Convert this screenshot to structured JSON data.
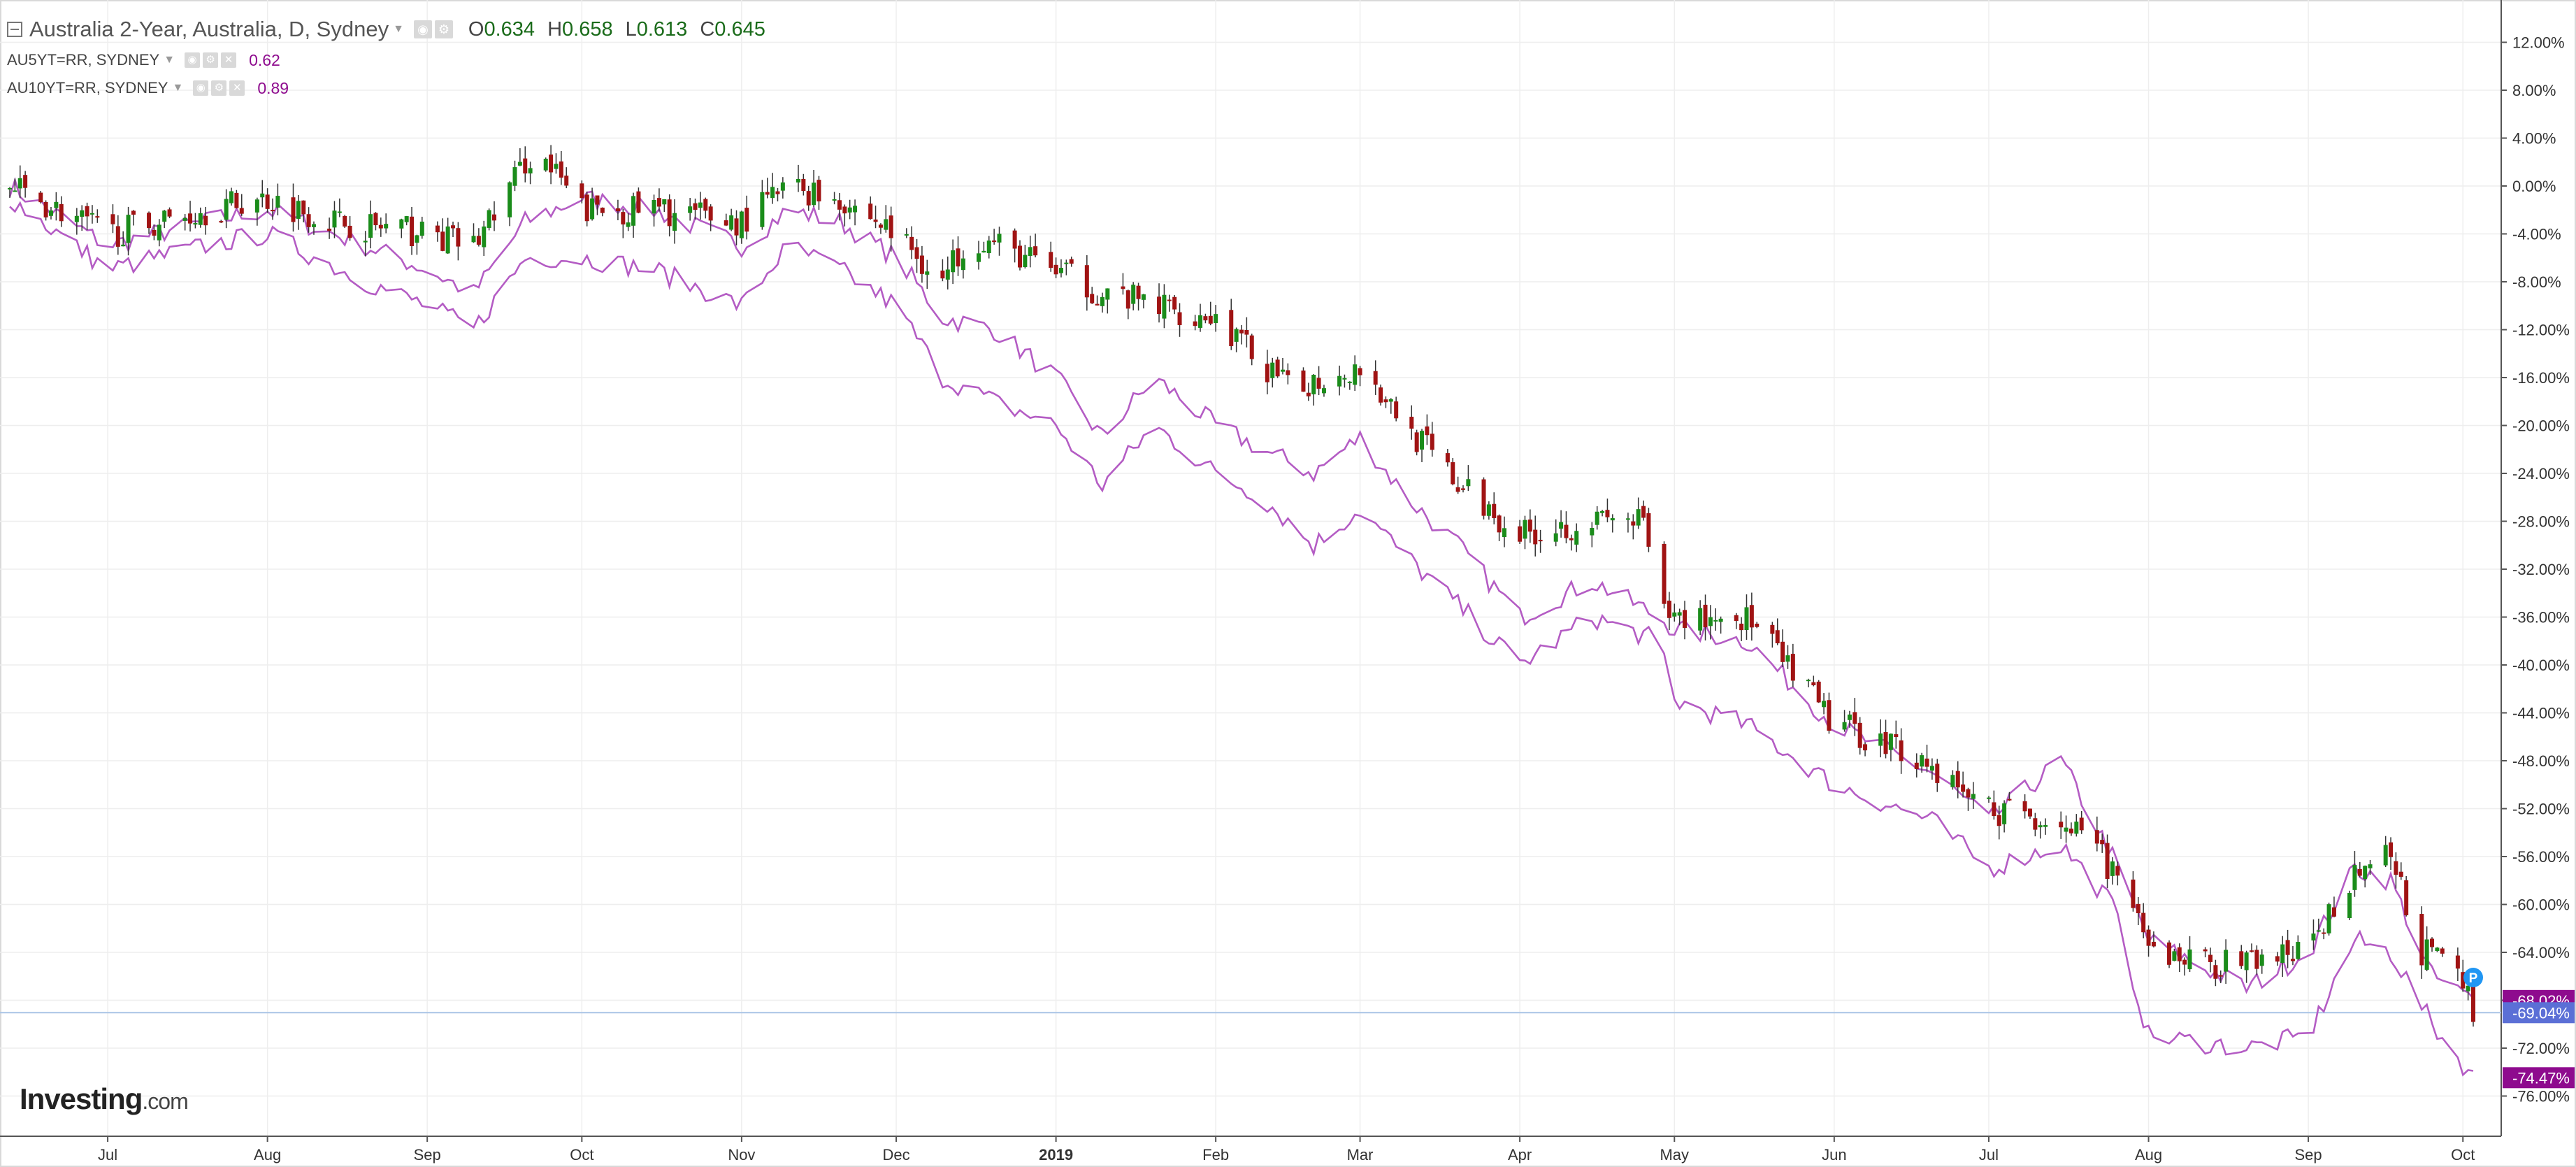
{
  "header": {
    "symbol_title": "Australia 2-Year, Australia, D, Sydney",
    "ohlc": [
      {
        "label": "O",
        "value": "0.634"
      },
      {
        "label": "H",
        "value": "0.658"
      },
      {
        "label": "L",
        "value": "0.613"
      },
      {
        "label": "C",
        "value": "0.645"
      }
    ],
    "overlays": [
      {
        "label": "AU5YT=RR, SYDNEY",
        "value": "0.62"
      },
      {
        "label": "AU10YT=RR, SYDNEY",
        "value": "0.89"
      }
    ]
  },
  "branding": {
    "logo_main": "Investing",
    "logo_suffix": ".com"
  },
  "price_marker": {
    "symbol": "P",
    "color": "#2196f3"
  },
  "colors": {
    "up": "#1a8c1a",
    "down": "#a01313",
    "overlay_line": "#b45cc4",
    "label_purple": "#8e0b8e",
    "label_blue": "#5b6fd6",
    "baseline": "#a9c4e6",
    "grid": "#eeeeee"
  },
  "chart_data": {
    "type": "line",
    "description_main_series": "candlestick",
    "x_axis_labels": [
      "Jul",
      "Aug",
      "Sep",
      "Oct",
      "Nov",
      "Dec",
      "2019",
      "Feb",
      "Mar",
      "Apr",
      "May",
      "Jun",
      "Jul",
      "Aug",
      "Sep",
      "Oct"
    ],
    "x_range": [
      "2018-06-12",
      "2019-10-03"
    ],
    "y_ticks": [
      12,
      8,
      4,
      0,
      -4,
      -8,
      -12,
      -16,
      -20,
      -24,
      -28,
      -32,
      -36,
      -40,
      -44,
      -48,
      -52,
      -56,
      -60,
      -64,
      -68,
      -72,
      -76
    ],
    "y_tick_labels": [
      "12.00%",
      "8.00%",
      "4.00%",
      "0.00%",
      "-4.00%",
      "-8.00%",
      "-12.00%",
      "-16.00%",
      "-20.00%",
      "-24.00%",
      "-28.00%",
      "-32.00%",
      "-36.00%",
      "-40.00%",
      "-44.00%",
      "-48.00%",
      "-52.00%",
      "-56.00%",
      "-60.00%",
      "-64.00%",
      "-68.00%",
      "-72.00%",
      "-76.00%"
    ],
    "ylim": [
      -79,
      15
    ],
    "y_unit": "% change",
    "last_value_labels": [
      {
        "text": "-68.02%",
        "value": -68.02,
        "series": "AU5YT=RR"
      },
      {
        "text": "-69.04%",
        "value": -69.04,
        "series": "Australia 2-Year"
      },
      {
        "text": "-74.47%",
        "value": -74.47,
        "series": "AU10YT=RR"
      }
    ],
    "baseline_value": -69.04,
    "grid": true,
    "series": [
      {
        "name": "Australia 2-Year",
        "style": "candlestick",
        "points": [
          [
            "2018-06-12",
            0
          ],
          [
            "2018-07-01",
            -4
          ],
          [
            "2018-07-20",
            -2
          ],
          [
            "2018-08-01",
            -1
          ],
          [
            "2018-08-15",
            -3
          ],
          [
            "2018-09-01",
            -4
          ],
          [
            "2018-09-10",
            -5
          ],
          [
            "2018-09-20",
            2
          ],
          [
            "2018-09-22",
            3
          ],
          [
            "2018-10-01",
            -2
          ],
          [
            "2018-10-15",
            -2
          ],
          [
            "2018-11-01",
            -3
          ],
          [
            "2018-11-10",
            0
          ],
          [
            "2018-11-20",
            -1
          ],
          [
            "2018-12-01",
            -4
          ],
          [
            "2018-12-10",
            -8
          ],
          [
            "2018-12-15",
            -4
          ],
          [
            "2019-01-01",
            -7
          ],
          [
            "2019-01-10",
            -9
          ],
          [
            "2019-02-01",
            -11
          ],
          [
            "2019-02-15",
            -17
          ],
          [
            "2019-03-01",
            -15
          ],
          [
            "2019-03-10",
            -20
          ],
          [
            "2019-03-20",
            -25
          ],
          [
            "2019-04-01",
            -29
          ],
          [
            "2019-04-15",
            -28
          ],
          [
            "2019-04-25",
            -28
          ],
          [
            "2019-04-28",
            -36
          ],
          [
            "2019-05-15",
            -36
          ],
          [
            "2019-06-01",
            -45
          ],
          [
            "2019-06-15",
            -47
          ],
          [
            "2019-07-01",
            -52
          ],
          [
            "2019-07-15",
            -53
          ],
          [
            "2019-07-25",
            -57
          ],
          [
            "2019-08-01",
            -64
          ],
          [
            "2019-08-15",
            -65
          ],
          [
            "2019-09-01",
            -64
          ],
          [
            "2019-09-10",
            -57
          ],
          [
            "2019-09-17",
            -56
          ],
          [
            "2019-09-23",
            -64
          ],
          [
            "2019-09-30",
            -65
          ],
          [
            "2019-10-03",
            -69.04
          ]
        ]
      },
      {
        "name": "AU5YT=RR",
        "style": "line",
        "points": [
          [
            "2018-06-12",
            0
          ],
          [
            "2018-07-01",
            -5
          ],
          [
            "2018-07-20",
            -3
          ],
          [
            "2018-08-01",
            -2
          ],
          [
            "2018-08-20",
            -5
          ],
          [
            "2018-09-01",
            -7
          ],
          [
            "2018-09-10",
            -9
          ],
          [
            "2018-09-20",
            -3
          ],
          [
            "2018-10-01",
            -1
          ],
          [
            "2018-10-15",
            -2
          ],
          [
            "2018-11-01",
            -5
          ],
          [
            "2018-11-10",
            -2
          ],
          [
            "2018-11-20",
            -3
          ],
          [
            "2018-12-01",
            -6
          ],
          [
            "2018-12-10",
            -11
          ],
          [
            "2018-12-20",
            -12
          ],
          [
            "2019-01-01",
            -16
          ],
          [
            "2019-01-10",
            -21
          ],
          [
            "2019-01-20",
            -16
          ],
          [
            "2019-02-01",
            -20
          ],
          [
            "2019-02-10",
            -22
          ],
          [
            "2019-02-20",
            -24
          ],
          [
            "2019-03-01",
            -21
          ],
          [
            "2019-03-10",
            -26
          ],
          [
            "2019-03-20",
            -30
          ],
          [
            "2019-04-01",
            -36
          ],
          [
            "2019-04-15",
            -33
          ],
          [
            "2019-04-28",
            -36
          ],
          [
            "2019-05-01",
            -37
          ],
          [
            "2019-05-15",
            -38
          ],
          [
            "2019-06-01",
            -45
          ],
          [
            "2019-06-20",
            -49
          ],
          [
            "2019-07-01",
            -53
          ],
          [
            "2019-07-15",
            -48
          ],
          [
            "2019-07-25",
            -56
          ],
          [
            "2019-08-01",
            -63
          ],
          [
            "2019-08-20",
            -67
          ],
          [
            "2019-09-01",
            -64
          ],
          [
            "2019-09-10",
            -57
          ],
          [
            "2019-09-17",
            -58
          ],
          [
            "2019-09-25",
            -66
          ],
          [
            "2019-10-03",
            -68.02
          ]
        ]
      },
      {
        "name": "AU10YT=RR",
        "style": "line",
        "points": [
          [
            "2018-06-12",
            -1
          ],
          [
            "2018-07-01",
            -7
          ],
          [
            "2018-07-20",
            -5
          ],
          [
            "2018-08-01",
            -4
          ],
          [
            "2018-08-20",
            -8
          ],
          [
            "2018-09-01",
            -10
          ],
          [
            "2018-09-10",
            -12
          ],
          [
            "2018-09-20",
            -6
          ],
          [
            "2018-10-01",
            -6
          ],
          [
            "2018-10-15",
            -7
          ],
          [
            "2018-11-01",
            -10
          ],
          [
            "2018-11-10",
            -5
          ],
          [
            "2018-11-20",
            -7
          ],
          [
            "2018-12-01",
            -10
          ],
          [
            "2018-12-10",
            -16
          ],
          [
            "2018-12-20",
            -18
          ],
          [
            "2019-01-01",
            -20
          ],
          [
            "2019-01-10",
            -25
          ],
          [
            "2019-01-20",
            -20
          ],
          [
            "2019-02-01",
            -24
          ],
          [
            "2019-02-10",
            -26
          ],
          [
            "2019-02-20",
            -30
          ],
          [
            "2019-03-01",
            -27
          ],
          [
            "2019-03-10",
            -31
          ],
          [
            "2019-03-20",
            -35
          ],
          [
            "2019-04-01",
            -40
          ],
          [
            "2019-04-15",
            -36
          ],
          [
            "2019-04-28",
            -38
          ],
          [
            "2019-05-01",
            -43
          ],
          [
            "2019-05-15",
            -45
          ],
          [
            "2019-06-01",
            -50
          ],
          [
            "2019-06-20",
            -53
          ],
          [
            "2019-07-01",
            -57
          ],
          [
            "2019-07-15",
            -55
          ],
          [
            "2019-07-25",
            -60
          ],
          [
            "2019-08-01",
            -71
          ],
          [
            "2019-08-20",
            -72
          ],
          [
            "2019-09-01",
            -71
          ],
          [
            "2019-09-10",
            -63
          ],
          [
            "2019-09-17",
            -64
          ],
          [
            "2019-09-25",
            -70
          ],
          [
            "2019-10-03",
            -74.47
          ]
        ]
      }
    ]
  }
}
